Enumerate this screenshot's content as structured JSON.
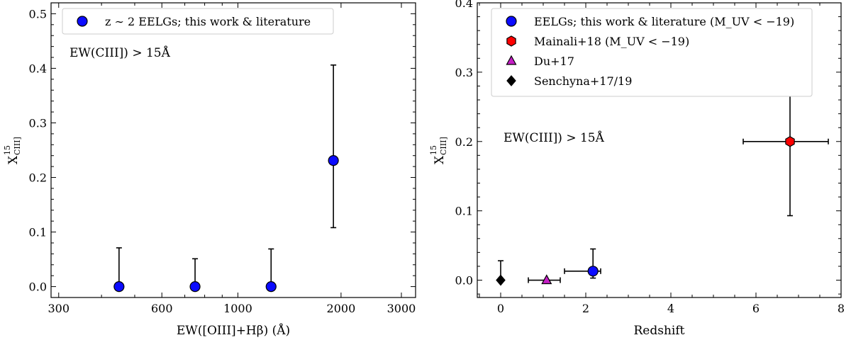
{
  "chart_data": [
    {
      "type": "scatter",
      "xlabel": "EW([OIII]+Hβ) (Å)",
      "ylabel": "X",
      "ylabel_sup": "15",
      "ylabel_sub": "CIII]",
      "xscale": "log",
      "xlim": [
        285,
        3300
      ],
      "ylim": [
        -0.02,
        0.52
      ],
      "x_ticks": [
        300,
        600,
        1000,
        2000,
        3000
      ],
      "x_tick_labels": [
        "300",
        "600",
        "1000",
        "2000",
        "3000"
      ],
      "y_ticks": [
        0.0,
        0.1,
        0.2,
        0.3,
        0.4,
        0.5
      ],
      "y_tick_labels": [
        "0.0",
        "0.1",
        "0.2",
        "0.3",
        "0.4",
        "0.5"
      ],
      "annotation": "EW(CIII]) > 15Å",
      "legend_position": "top-left",
      "series": [
        {
          "name": "z ∼ 2 EELGs; this work & literature",
          "marker": "circle",
          "color": "#0b0bff",
          "points": [
            {
              "x": 450,
              "y": 0.0,
              "y_low": 0.0,
              "y_high": 0.071
            },
            {
              "x": 750,
              "y": 0.0,
              "y_low": 0.0,
              "y_high": 0.051
            },
            {
              "x": 1250,
              "y": 0.0,
              "y_low": 0.0,
              "y_high": 0.069
            },
            {
              "x": 1900,
              "y": 0.231,
              "y_low": 0.108,
              "y_high": 0.406
            }
          ]
        }
      ]
    },
    {
      "type": "scatter",
      "xlabel": "Redshift",
      "ylabel": "X",
      "ylabel_sup": "15",
      "ylabel_sub": "CIII]",
      "xlim": [
        -0.55,
        8.0
      ],
      "ylim": [
        -0.025,
        0.4
      ],
      "x_ticks": [
        0,
        2,
        4,
        6,
        8
      ],
      "x_tick_labels": [
        "0",
        "2",
        "4",
        "6",
        "8"
      ],
      "y_ticks": [
        0.0,
        0.1,
        0.2,
        0.3,
        0.4
      ],
      "y_tick_labels": [
        "0.0",
        "0.1",
        "0.2",
        "0.3",
        "0.4"
      ],
      "annotation": "EW(CIII]) > 15Å",
      "legend_position": "top-left",
      "series": [
        {
          "name": "EELGs; this work & literature",
          "name_suffix": "(M_UV < −19)",
          "marker": "circle",
          "color": "#0b0bff",
          "points": [
            {
              "x": 2.17,
              "y": 0.013,
              "x_low": 1.5,
              "x_high": 2.35,
              "y_low": 0.003,
              "y_high": 0.045
            }
          ]
        },
        {
          "name": "Mainali+18",
          "name_suffix": "(M_UV < −19)",
          "marker": "hexagon",
          "color": "#ff0000",
          "points": [
            {
              "x": 6.8,
              "y": 0.2,
              "x_low": 5.7,
              "x_high": 7.7,
              "y_low": 0.093,
              "y_high": 0.359
            }
          ]
        },
        {
          "name": "Du+17",
          "marker": "triangle",
          "color": "#c51ec5",
          "points": [
            {
              "x": 1.08,
              "y": 0.0,
              "x_low": 0.65,
              "x_high": 1.4
            }
          ]
        },
        {
          "name": "Senchyna+17/19",
          "marker": "diamond",
          "color": "#000000",
          "points": [
            {
              "x": 0.0,
              "y": 0.0,
              "y_low": 0.0,
              "y_high": 0.028
            }
          ]
        }
      ]
    }
  ]
}
